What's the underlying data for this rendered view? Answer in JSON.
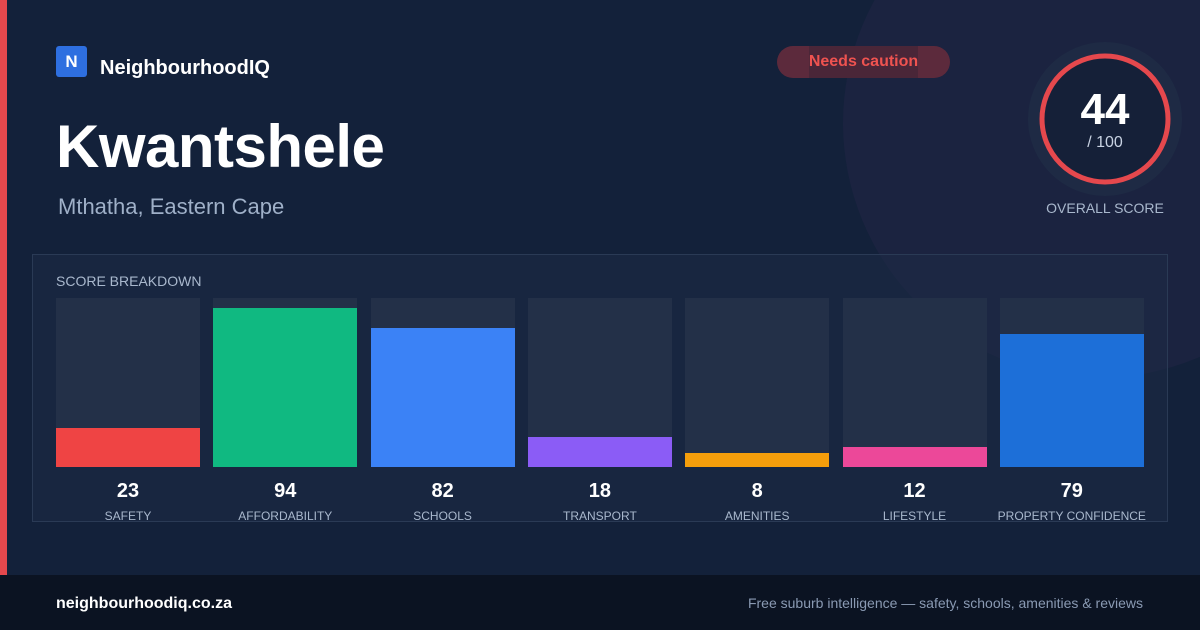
{
  "brand": {
    "logo_letter": "N",
    "name": "NeighbourhoodIQ"
  },
  "status_badge": {
    "label": "Needs caution",
    "color": "#ef5350"
  },
  "location": {
    "title": "Kwantshele",
    "subtitle": "Mthatha, Eastern Cape"
  },
  "overall": {
    "value": "44",
    "max_label": "/ 100",
    "score": 44,
    "max": 100,
    "caption": "OVERALL SCORE",
    "ring_color": "#e5484d"
  },
  "breakdown": {
    "title": "SCORE BREAKDOWN"
  },
  "chart_data": {
    "type": "bar",
    "title": "SCORE BREAKDOWN",
    "ylim": [
      0,
      100
    ],
    "categories": [
      "SAFETY",
      "AFFORDABILITY",
      "SCHOOLS",
      "TRANSPORT",
      "AMENITIES",
      "LIFESTYLE",
      "PROPERTY CONFIDENCE"
    ],
    "values": [
      23,
      94,
      82,
      18,
      8,
      12,
      79
    ],
    "colors": [
      "#ef4444",
      "#10b981",
      "#3b82f6",
      "#8b5cf6",
      "#f59e0b",
      "#ec4899",
      "#1d6fd8"
    ]
  },
  "footer": {
    "domain": "neighbourhoodiq.co.za",
    "tagline": "Free suburb intelligence — safety, schools, amenities & reviews"
  }
}
